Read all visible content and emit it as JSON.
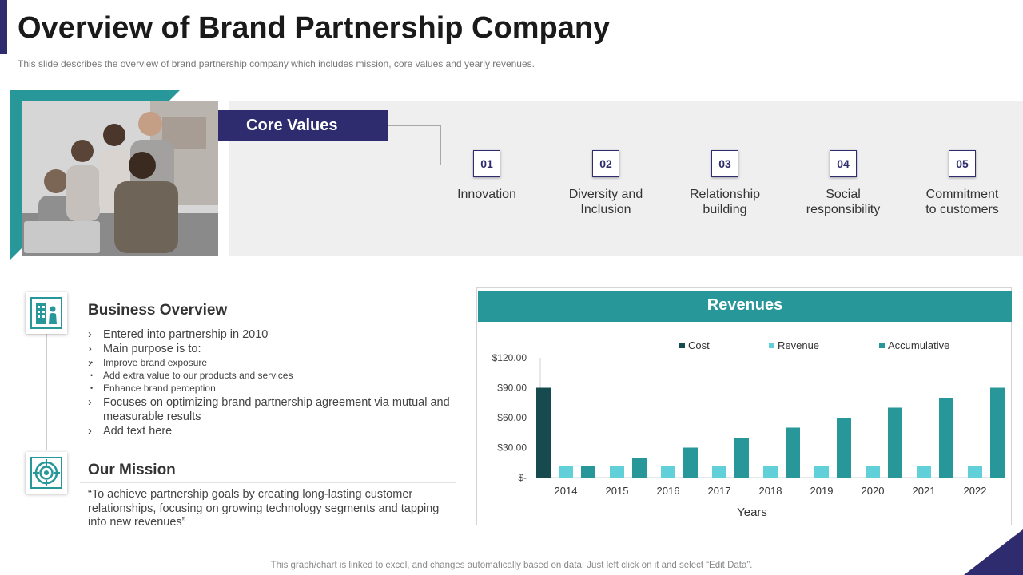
{
  "slide": {
    "title": "Overview of Brand Partnership Company",
    "subtitle": "This slide describes the overview  of brand partnership company which includes mission, core values and yearly revenues.",
    "footer": "This graph/chart is linked to excel,  and changes automatically based on data. Just left click on it and select “Edit Data”.",
    "colors": {
      "navy": "#2e2c6e",
      "teal": "#27979a",
      "dark_teal": "#164a4f",
      "light_teal": "#62d0d9"
    }
  },
  "core_values": {
    "header": "Core Values",
    "items": [
      {
        "number": "01",
        "label": "Innovation"
      },
      {
        "number": "02",
        "label": "Diversity and\nInclusion"
      },
      {
        "number": "03",
        "label": "Relationship\nbuilding"
      },
      {
        "number": "04",
        "label": "Social\nresponsibility"
      },
      {
        "number": "05",
        "label": "Commitment\nto customers"
      }
    ]
  },
  "business_overview": {
    "title": "Business Overview",
    "icon": "building-person-icon",
    "bullets": [
      "Entered into partnership in 2010",
      "Main purpose is to:",
      "Focuses on optimizing brand partnership agreement via mutual and measurable results",
      "Add text here"
    ],
    "sub_bullets": [
      "Improve  brand exposure",
      "Add extra value  to our products and services",
      "Enhance brand perception"
    ]
  },
  "mission": {
    "title": "Our Mission",
    "icon": "target-icon",
    "text": "“To achieve partnership goals by creating long-lasting customer relationships, focusing on growing technology segments and tapping into new revenues”"
  },
  "chart_header": "Revenues",
  "chart_data": {
    "type": "bar",
    "title": "Revenues",
    "xlabel": "Years",
    "ylabel": "",
    "categories": [
      "2014",
      "2015",
      "2016",
      "2017",
      "2018",
      "2019",
      "2020",
      "2021",
      "2022"
    ],
    "series": [
      {
        "name": "Cost",
        "color": "#164a4f",
        "values": [
          90,
          0,
          0,
          0,
          0,
          0,
          0,
          0,
          0
        ]
      },
      {
        "name": "Revenue",
        "color": "#62d0d9",
        "values": [
          12,
          12,
          12,
          12,
          12,
          12,
          12,
          12,
          12
        ]
      },
      {
        "name": "Accumulative",
        "color": "#27979a",
        "values": [
          12,
          20,
          30,
          40,
          50,
          60,
          70,
          80,
          90
        ]
      }
    ],
    "ylim": [
      0,
      120
    ],
    "yticks": [
      {
        "value": 0,
        "label": "$-"
      },
      {
        "value": 30,
        "label": "$30.00"
      },
      {
        "value": 60,
        "label": "$60.00"
      },
      {
        "value": 90,
        "label": "$90.00"
      },
      {
        "value": 120,
        "label": "$120.00"
      }
    ],
    "legend_position": "top",
    "grid": false
  }
}
